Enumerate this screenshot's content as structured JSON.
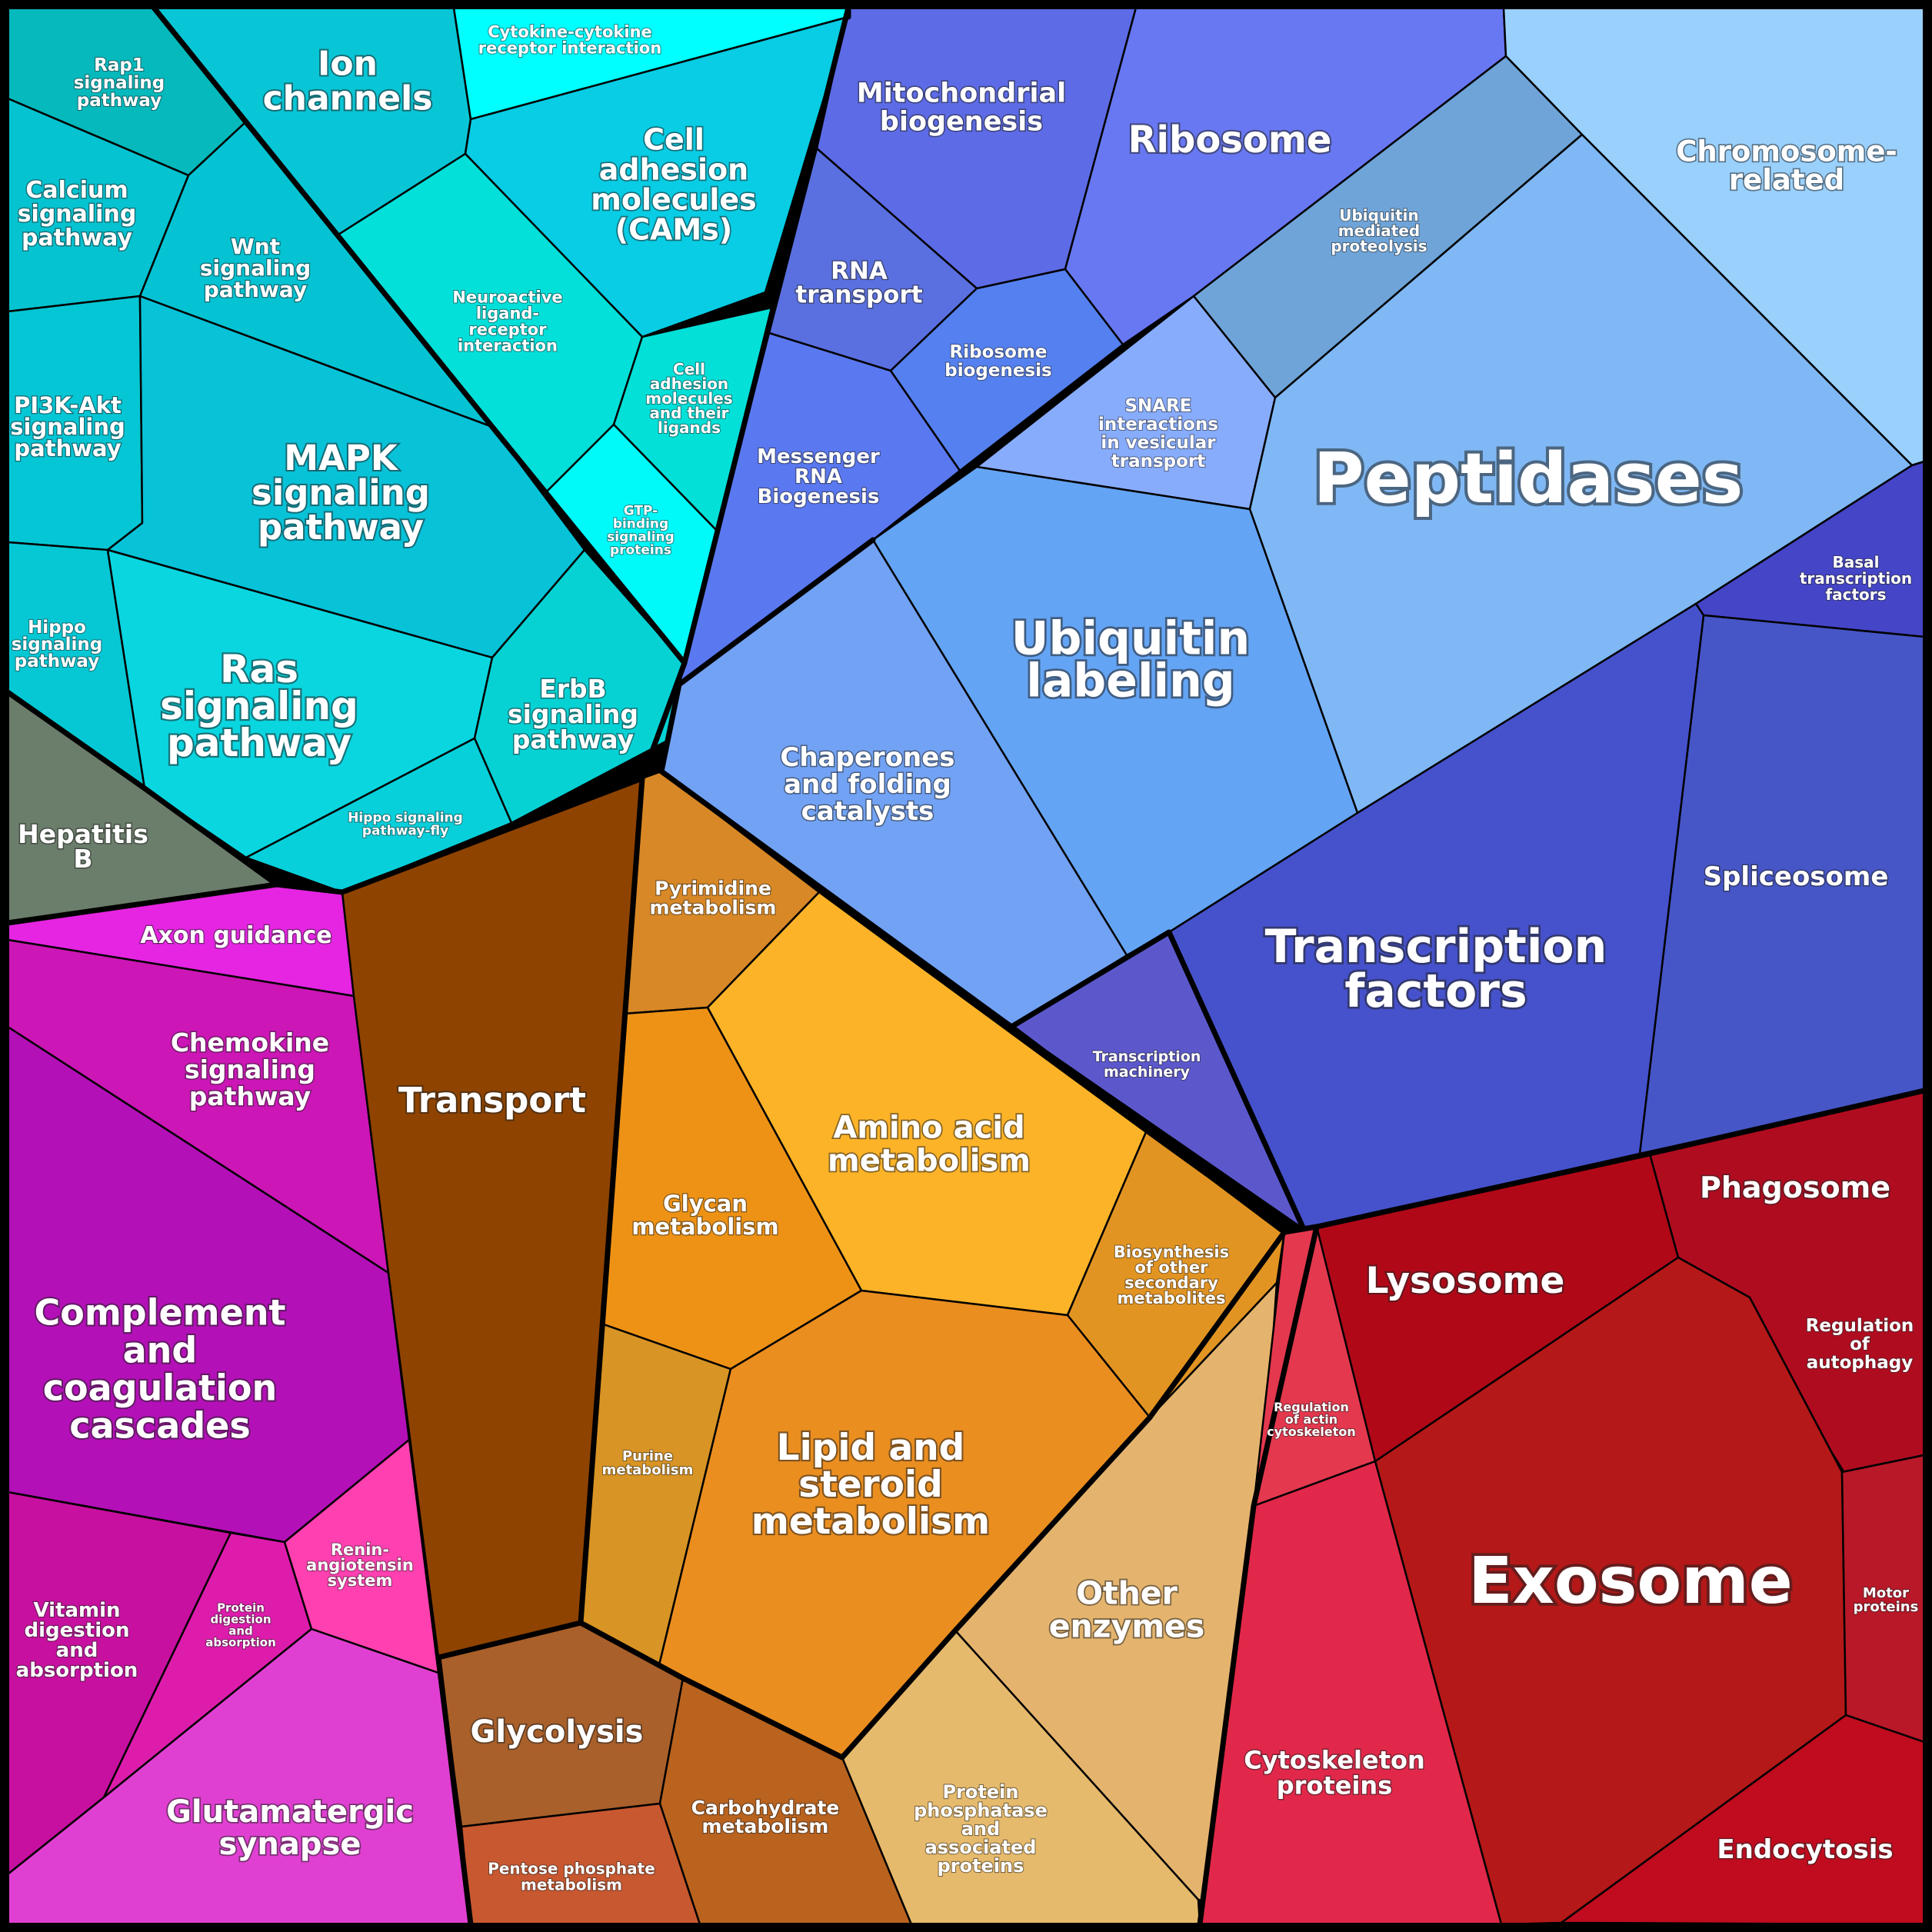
{
  "colors": {
    "teal_group": "#00c8d6",
    "blue_group": "#5a6ee8",
    "orange_group": "#e8901e",
    "magenta_group": "#c010c0",
    "red_group": "#c0101c",
    "transport": "#8f4300",
    "hepatitis": "#6b7d6b",
    "border": "#000000"
  },
  "cells": {
    "rap1": [
      "Rap1",
      "signaling",
      "pathway"
    ],
    "calcium": [
      "Calcium",
      "signaling",
      "pathway"
    ],
    "wnt": [
      "Wnt",
      "signaling",
      "pathway"
    ],
    "ion_channels": [
      "Ion",
      "channels"
    ],
    "cytokine": [
      "Cytokine-cytokine",
      "receptor interaction"
    ],
    "cams": [
      "Cell",
      "adhesion",
      "molecules",
      "(CAMs)"
    ],
    "neuroactive": [
      "Neuroactive",
      "ligand-",
      "receptor",
      "interaction"
    ],
    "cam_ligands": [
      "Cell",
      "adhesion",
      "molecules",
      "and their",
      "ligands"
    ],
    "gtp": [
      "GTP-",
      "binding",
      "signaling",
      "proteins"
    ],
    "pi3k": [
      "PI3K-Akt",
      "signaling",
      "pathway"
    ],
    "mapk": [
      "MAPK",
      "signaling",
      "pathway"
    ],
    "hippo": [
      "Hippo",
      "signaling",
      "pathway"
    ],
    "ras": [
      "Ras",
      "signaling",
      "pathway"
    ],
    "erbb": [
      "ErbB",
      "signaling",
      "pathway"
    ],
    "hippo_fly": [
      "Hippo signaling",
      "pathway-fly"
    ],
    "hepatitis": [
      "Hepatitis",
      "B"
    ],
    "mito": [
      "Mitochondrial",
      "biogenesis"
    ],
    "ribosome": [
      "Ribosome"
    ],
    "chromosome": [
      "Chromosome-",
      "related"
    ],
    "ubiq_proteolysis": [
      "Ubiquitin",
      "mediated",
      "proteolysis"
    ],
    "rna_transport": [
      "RNA",
      "transport"
    ],
    "ribosome_bio": [
      "Ribosome",
      "biogenesis"
    ],
    "mrna": [
      "Messenger",
      "RNA",
      "Biogenesis"
    ],
    "snare": [
      "SNARE",
      "interactions",
      "in vesicular",
      "transport"
    ],
    "peptidases": [
      "Peptidases"
    ],
    "basal_tf": [
      "Basal",
      "transcription",
      "factors"
    ],
    "ubiquitin_labeling": [
      "Ubiquitin",
      "labeling"
    ],
    "chaperones": [
      "Chaperones",
      "and folding",
      "catalysts"
    ],
    "spliceosome": [
      "Spliceosome"
    ],
    "transcription_factors": [
      "Transcription",
      "factors"
    ],
    "transcription_machinery": [
      "Transcription",
      "machinery"
    ],
    "axon": [
      "Axon guidance"
    ],
    "chemokine": [
      "Chemokine",
      "signaling",
      "pathway"
    ],
    "complement": [
      "Complement",
      "and",
      "coagulation",
      "cascades"
    ],
    "vitamin": [
      "Vitamin",
      "digestion",
      "and",
      "absorption"
    ],
    "protein_digestion": [
      "Protein",
      "digestion",
      "and",
      "absorption"
    ],
    "renin": [
      "Renin-",
      "angiotensin",
      "system"
    ],
    "glutamatergic": [
      "Glutamatergic",
      "synapse"
    ],
    "transport": [
      "Transport"
    ],
    "pyrimidine": [
      "Pyrimidine",
      "metabolism"
    ],
    "amino_acid": [
      "Amino acid",
      "metabolism"
    ],
    "glycan": [
      "Glycan",
      "metabolism"
    ],
    "biosynthesis": [
      "Biosynthesis",
      "of other",
      "secondary",
      "metabolites"
    ],
    "purine": [
      "Purine",
      "metabolism"
    ],
    "lipid": [
      "Lipid and",
      "steroid",
      "metabolism"
    ],
    "other_enzymes": [
      "Other",
      "enzymes"
    ],
    "glycolysis": [
      "Glycolysis"
    ],
    "carbohydrate": [
      "Carbohydrate",
      "metabolism"
    ],
    "pentose": [
      "Pentose phosphate",
      "metabolism"
    ],
    "protein_phosphatase": [
      "Protein",
      "phosphatase",
      "and",
      "associated",
      "proteins"
    ],
    "lysosome": [
      "Lysosome"
    ],
    "phagosome": [
      "Phagosome"
    ],
    "regulation_autophagy": [
      "Regulation",
      "of",
      "autophagy"
    ],
    "regulation_actin": [
      "Regulation",
      "of actin",
      "cytoskeleton"
    ],
    "exosome": [
      "Exosome"
    ],
    "motor": [
      "Motor",
      "proteins"
    ],
    "cytoskeleton": [
      "Cytoskeleton",
      "proteins"
    ],
    "endocytosis": [
      "Endocytosis"
    ]
  }
}
